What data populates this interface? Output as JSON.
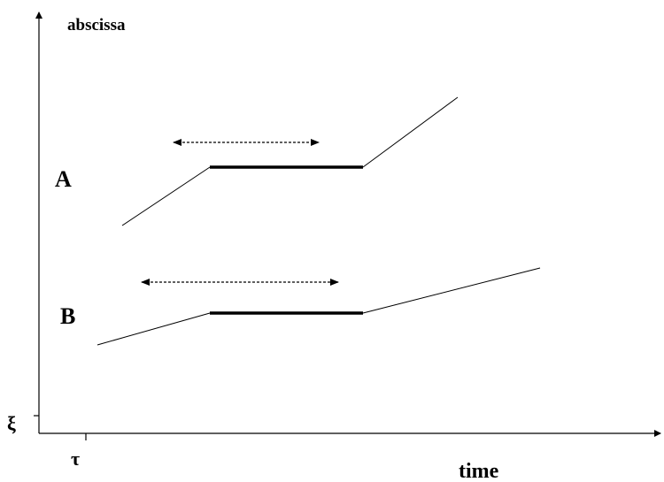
{
  "axes": {
    "y_label": "abscissa",
    "x_label": "time",
    "y_origin": "ξ",
    "x_origin": "τ"
  },
  "curves": [
    {
      "label": "A"
    },
    {
      "label": "B"
    }
  ]
}
